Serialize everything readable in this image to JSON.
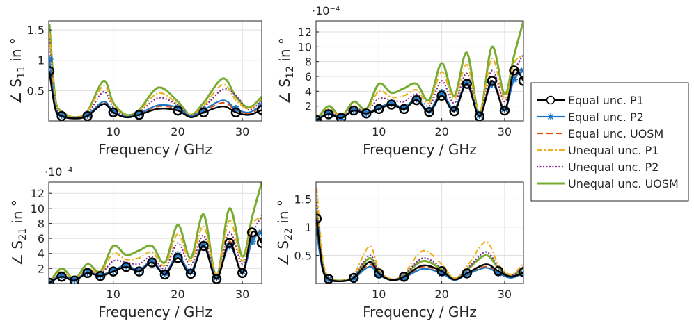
{
  "legend": {
    "placement": "right",
    "entries": [
      {
        "label": "Equal unc. P1",
        "color": "#000000",
        "style": "solid",
        "marker": "circle"
      },
      {
        "label": "Equal unc. P2",
        "color": "#1f77c4",
        "style": "solid",
        "marker": "asterisk"
      },
      {
        "label": "Equal unc. UOSM",
        "color": "#d95319",
        "style": "dashed",
        "marker": "none"
      },
      {
        "label": "Unequal unc. P1",
        "color": "#edb120",
        "style": "dashdot",
        "marker": "none"
      },
      {
        "label": "Unequal unc. P2",
        "color": "#7e2f8e",
        "style": "dotted",
        "marker": "none"
      },
      {
        "label": "Unequal unc. UOSM",
        "color": "#77ac30",
        "style": "solid",
        "marker": "none"
      }
    ]
  },
  "chart_data": [
    {
      "type": "line",
      "ylabel_base": "∠ S",
      "ylabel_sub": "11",
      "ylabel_tail": " in °",
      "xlabel": "Frequency / GHz",
      "exponent": "",
      "xlim": [
        0,
        33
      ],
      "ylim": [
        0,
        1.65
      ],
      "xticks": [
        10,
        20,
        30
      ],
      "yticks": [
        0.5,
        1,
        1.5
      ],
      "ytick_labels": [
        "0.5",
        "1",
        "1.5"
      ],
      "grid": true,
      "x": [
        0.1,
        1,
        2,
        4,
        6,
        8.5,
        10,
        12,
        14,
        17,
        20,
        22,
        24,
        27,
        29,
        31,
        33
      ],
      "series": [
        {
          "values": [
            0.82,
            0.2,
            0.08,
            0.04,
            0.08,
            0.28,
            0.14,
            0.06,
            0.1,
            0.2,
            0.17,
            0.06,
            0.14,
            0.24,
            0.14,
            0.1,
            0.18
          ]
        },
        {
          "values": [
            1.02,
            0.24,
            0.1,
            0.05,
            0.1,
            0.32,
            0.16,
            0.07,
            0.12,
            0.26,
            0.22,
            0.08,
            0.18,
            0.34,
            0.2,
            0.14,
            0.26
          ]
        },
        {
          "values": [
            1.0,
            0.22,
            0.09,
            0.05,
            0.09,
            0.3,
            0.15,
            0.07,
            0.11,
            0.24,
            0.2,
            0.07,
            0.16,
            0.3,
            0.18,
            0.12,
            0.24
          ]
        },
        {
          "values": [
            1.45,
            0.35,
            0.15,
            0.06,
            0.15,
            0.58,
            0.26,
            0.09,
            0.16,
            0.46,
            0.28,
            0.1,
            0.25,
            0.6,
            0.34,
            0.2,
            0.36
          ]
        },
        {
          "values": [
            1.35,
            0.3,
            0.12,
            0.06,
            0.12,
            0.48,
            0.22,
            0.08,
            0.14,
            0.38,
            0.26,
            0.09,
            0.22,
            0.52,
            0.42,
            0.18,
            0.34
          ]
        },
        {
          "values": [
            1.6,
            0.38,
            0.16,
            0.06,
            0.16,
            0.66,
            0.3,
            0.1,
            0.18,
            0.55,
            0.32,
            0.1,
            0.3,
            0.7,
            0.4,
            0.22,
            0.4
          ]
        }
      ]
    },
    {
      "type": "line",
      "ylabel_base": "∠ S",
      "ylabel_sub": "12",
      "ylabel_tail": " in °",
      "xlabel": "Frequency / GHz",
      "exponent": "·10⁻⁴",
      "xlim": [
        0,
        33
      ],
      "ylim": [
        0,
        13.5
      ],
      "xticks": [
        10,
        20,
        30
      ],
      "yticks": [
        2,
        4,
        6,
        8,
        10,
        12
      ],
      "ytick_labels": [
        "2",
        "4",
        "6",
        "8",
        "10",
        "12"
      ],
      "grid": true,
      "x": [
        0.1,
        2,
        4,
        6,
        8,
        10,
        12,
        14,
        16,
        18,
        20,
        22,
        24,
        26,
        28,
        30,
        31.5,
        33
      ],
      "series": [
        {
          "values": [
            0.1,
            0.9,
            0.4,
            1.4,
            1.0,
            1.6,
            2.2,
            1.6,
            2.8,
            1.2,
            3.4,
            1.3,
            5.0,
            0.6,
            5.4,
            1.4,
            6.8,
            5.4
          ]
        },
        {
          "values": [
            0.1,
            1.1,
            0.5,
            1.5,
            1.1,
            1.8,
            2.4,
            1.8,
            3.0,
            1.4,
            3.8,
            1.6,
            5.2,
            0.8,
            5.0,
            1.6,
            5.6,
            6.8
          ]
        },
        {
          "values": [
            0.1,
            1.0,
            0.5,
            1.5,
            1.1,
            1.8,
            2.4,
            1.8,
            3.0,
            1.4,
            3.8,
            1.6,
            5.4,
            0.8,
            5.6,
            1.6,
            6.0,
            7.0
          ]
        },
        {
          "values": [
            0.1,
            1.6,
            0.6,
            2.0,
            1.4,
            4.0,
            3.2,
            3.4,
            4.2,
            2.4,
            6.6,
            3.0,
            7.6,
            1.2,
            8.4,
            3.0,
            7.8,
            8.8
          ]
        },
        {
          "values": [
            0.1,
            1.3,
            0.6,
            1.8,
            1.3,
            3.0,
            2.8,
            2.6,
            3.6,
            2.0,
            5.4,
            2.4,
            6.4,
            1.0,
            6.8,
            2.6,
            6.6,
            9.0
          ]
        },
        {
          "values": [
            0.1,
            2.0,
            0.6,
            2.6,
            1.6,
            5.0,
            3.8,
            4.4,
            5.0,
            2.8,
            7.8,
            3.4,
            9.2,
            1.0,
            10.0,
            3.6,
            8.8,
            13.5
          ]
        }
      ]
    },
    {
      "type": "line",
      "ylabel_base": "∠ S",
      "ylabel_sub": "21",
      "ylabel_tail": " in °",
      "xlabel": "Frequency / GHz",
      "exponent": "·10⁻⁴",
      "xlim": [
        0,
        33
      ],
      "ylim": [
        0,
        13.5
      ],
      "xticks": [
        10,
        20,
        30
      ],
      "yticks": [
        2,
        4,
        6,
        8,
        10,
        12
      ],
      "ytick_labels": [
        "2",
        "4",
        "6",
        "8",
        "10",
        "12"
      ],
      "grid": true,
      "x": [
        0.1,
        2,
        4,
        6,
        8,
        10,
        12,
        14,
        16,
        18,
        20,
        22,
        24,
        26,
        28,
        30,
        31.5,
        33
      ],
      "series": [
        {
          "values": [
            0.1,
            0.9,
            0.4,
            1.4,
            1.0,
            1.6,
            2.2,
            1.6,
            2.8,
            1.2,
            3.4,
            1.3,
            5.0,
            0.6,
            5.4,
            1.4,
            6.8,
            5.4
          ]
        },
        {
          "values": [
            0.1,
            1.1,
            0.5,
            1.5,
            1.1,
            1.8,
            2.4,
            1.8,
            3.0,
            1.4,
            3.8,
            1.6,
            5.2,
            0.8,
            5.0,
            1.6,
            5.6,
            6.8
          ]
        },
        {
          "values": [
            0.1,
            1.0,
            0.5,
            1.5,
            1.1,
            1.8,
            2.4,
            1.8,
            3.0,
            1.4,
            3.8,
            1.6,
            5.4,
            0.8,
            5.6,
            1.6,
            6.0,
            7.0
          ]
        },
        {
          "values": [
            0.1,
            1.6,
            0.6,
            2.0,
            1.4,
            4.0,
            3.2,
            3.4,
            4.2,
            2.4,
            6.6,
            3.0,
            7.6,
            1.2,
            8.4,
            3.0,
            7.8,
            8.8
          ]
        },
        {
          "values": [
            0.1,
            1.3,
            0.6,
            1.8,
            1.3,
            3.0,
            2.8,
            2.6,
            3.6,
            2.0,
            5.4,
            2.4,
            6.4,
            1.0,
            6.8,
            2.6,
            6.6,
            9.0
          ]
        },
        {
          "values": [
            0.1,
            2.0,
            0.6,
            2.6,
            1.6,
            5.0,
            3.8,
            4.4,
            5.0,
            2.8,
            7.8,
            3.4,
            9.2,
            1.0,
            10.0,
            3.6,
            8.8,
            13.5
          ]
        }
      ]
    },
    {
      "type": "line",
      "ylabel_base": "∠ S",
      "ylabel_sub": "22",
      "ylabel_tail": " in °",
      "xlabel": "Frequency / GHz",
      "exponent": "",
      "xlim": [
        0,
        33
      ],
      "ylim": [
        0,
        1.8
      ],
      "xticks": [
        10,
        20,
        30
      ],
      "yticks": [
        0.5,
        1,
        1.5
      ],
      "ytick_labels": [
        "0.5",
        "1",
        "1.5"
      ],
      "grid": true,
      "x": [
        0.1,
        1,
        2,
        4,
        6,
        8.5,
        10,
        12,
        14,
        17,
        20,
        22,
        24,
        27,
        29,
        31,
        33
      ],
      "series": [
        {
          "values": [
            1.15,
            0.3,
            0.08,
            0.04,
            0.1,
            0.38,
            0.18,
            0.06,
            0.12,
            0.32,
            0.22,
            0.07,
            0.18,
            0.34,
            0.22,
            0.12,
            0.2
          ]
        },
        {
          "values": [
            0.92,
            0.26,
            0.07,
            0.04,
            0.09,
            0.3,
            0.15,
            0.06,
            0.1,
            0.26,
            0.18,
            0.06,
            0.16,
            0.28,
            0.18,
            0.1,
            0.18
          ]
        },
        {
          "values": [
            1.1,
            0.28,
            0.08,
            0.04,
            0.1,
            0.34,
            0.17,
            0.06,
            0.11,
            0.3,
            0.2,
            0.07,
            0.17,
            0.3,
            0.2,
            0.11,
            0.2
          ]
        },
        {
          "values": [
            1.7,
            0.5,
            0.12,
            0.05,
            0.16,
            0.66,
            0.26,
            0.08,
            0.18,
            0.58,
            0.34,
            0.1,
            0.3,
            0.74,
            0.34,
            0.16,
            0.36
          ]
        },
        {
          "values": [
            1.45,
            0.4,
            0.1,
            0.05,
            0.13,
            0.5,
            0.22,
            0.07,
            0.15,
            0.45,
            0.28,
            0.09,
            0.26,
            0.56,
            0.3,
            0.14,
            0.3
          ]
        },
        {
          "values": [
            1.3,
            0.36,
            0.1,
            0.05,
            0.12,
            0.45,
            0.2,
            0.07,
            0.14,
            0.4,
            0.25,
            0.08,
            0.24,
            0.5,
            0.28,
            0.13,
            0.28
          ]
        }
      ]
    }
  ]
}
